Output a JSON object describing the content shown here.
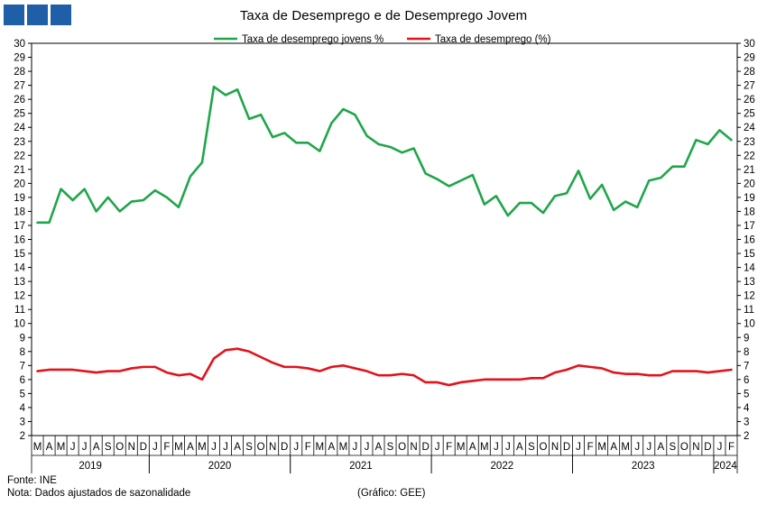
{
  "chart_data": {
    "type": "line",
    "title": "Taxa de Desemprego e de Desemprego Jovem",
    "ylim": [
      2,
      30
    ],
    "y_ticks": [
      2,
      3,
      4,
      5,
      6,
      7,
      8,
      9,
      10,
      11,
      12,
      13,
      14,
      15,
      16,
      17,
      18,
      19,
      20,
      21,
      22,
      23,
      24,
      25,
      26,
      27,
      28,
      29,
      30
    ],
    "grid": false,
    "legend_position": "top-center",
    "month_labels": [
      "M",
      "A",
      "M",
      "J",
      "J",
      "A",
      "S",
      "O",
      "N",
      "D",
      "J",
      "F",
      "M",
      "A",
      "M",
      "J",
      "J",
      "A",
      "S",
      "O",
      "N",
      "D",
      "J",
      "F",
      "M",
      "A",
      "M",
      "J",
      "J",
      "A",
      "S",
      "O",
      "N",
      "D",
      "J",
      "F",
      "M",
      "A",
      "M",
      "J",
      "J",
      "A",
      "S",
      "O",
      "N",
      "D",
      "J",
      "F",
      "M",
      "A",
      "M",
      "J",
      "J",
      "A",
      "S",
      "O",
      "N",
      "D",
      "J",
      "F"
    ],
    "years": [
      {
        "label": "2019",
        "start": 0,
        "end": 10
      },
      {
        "label": "2020",
        "start": 10,
        "end": 22
      },
      {
        "label": "2021",
        "start": 22,
        "end": 34
      },
      {
        "label": "2022",
        "start": 34,
        "end": 46
      },
      {
        "label": "2023",
        "start": 46,
        "end": 58
      },
      {
        "label": "2024",
        "start": 58,
        "end": 60
      }
    ],
    "series": [
      {
        "name": "Taxa de desemprego jovens %",
        "color": "#1fa64a",
        "values": [
          17.2,
          17.2,
          19.6,
          18.8,
          19.6,
          18.0,
          19.0,
          18.0,
          18.7,
          18.8,
          19.5,
          19.0,
          18.3,
          20.5,
          21.5,
          26.9,
          26.3,
          26.7,
          24.6,
          24.9,
          23.3,
          23.6,
          22.9,
          22.9,
          22.3,
          24.3,
          25.3,
          24.9,
          23.4,
          22.8,
          22.6,
          22.2,
          22.5,
          20.7,
          20.3,
          19.8,
          20.2,
          20.6,
          18.5,
          19.1,
          17.7,
          18.6,
          18.6,
          17.9,
          19.1,
          19.3,
          20.9,
          18.9,
          19.9,
          18.1,
          18.7,
          18.3,
          20.2,
          20.4,
          21.2,
          21.2,
          23.1,
          22.8,
          23.8,
          23.1
        ]
      },
      {
        "name": "Taxa de desemprego (%)",
        "color": "#e3131b",
        "values": [
          6.6,
          6.7,
          6.7,
          6.7,
          6.6,
          6.5,
          6.6,
          6.6,
          6.8,
          6.9,
          6.9,
          6.5,
          6.3,
          6.4,
          6.0,
          7.5,
          8.1,
          8.2,
          8.0,
          7.6,
          7.2,
          6.9,
          6.9,
          6.8,
          6.6,
          6.9,
          7.0,
          6.8,
          6.6,
          6.3,
          6.3,
          6.4,
          6.3,
          5.8,
          5.8,
          5.6,
          5.8,
          5.9,
          6.0,
          6.0,
          6.0,
          6.0,
          6.1,
          6.1,
          6.5,
          6.7,
          7.0,
          6.9,
          6.8,
          6.5,
          6.4,
          6.4,
          6.3,
          6.3,
          6.6,
          6.6,
          6.6,
          6.5,
          6.6,
          6.7
        ]
      }
    ]
  },
  "footer": {
    "source": "Fonte: INE",
    "note": "Nota: Dados ajustados de sazonalidade",
    "credit": "(Gráfico: GEE)"
  }
}
